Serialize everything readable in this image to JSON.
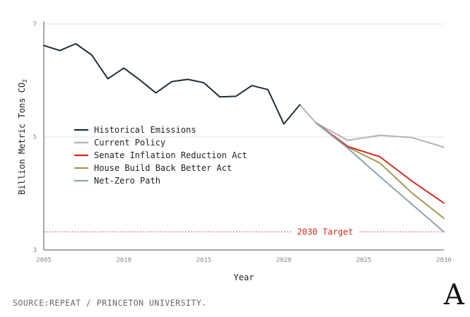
{
  "chart_data": {
    "type": "line",
    "xlabel": "Year",
    "ylabel": "Billion Metric Tons CO",
    "ylabel_sub": "2",
    "xlim": [
      2005,
      2030
    ],
    "ylim": [
      3,
      7
    ],
    "x_ticks": [
      "2005",
      "2010",
      "2015",
      "2020",
      "2025",
      "2030"
    ],
    "y_ticks": [
      "3",
      "5",
      "7"
    ],
    "grid": true,
    "legend_position": "center-left",
    "series": [
      {
        "name": "Historical Emissions",
        "color": "#1f2d38",
        "x": [
          2005,
          2006,
          2007,
          2008,
          2009,
          2010,
          2011,
          2012,
          2013,
          2014,
          2015,
          2016,
          2017,
          2018,
          2019,
          2020,
          2021
        ],
        "y": [
          6.62,
          6.53,
          6.65,
          6.45,
          6.03,
          6.22,
          6.01,
          5.78,
          5.98,
          6.02,
          5.96,
          5.71,
          5.72,
          5.91,
          5.84,
          5.23,
          5.57
        ]
      },
      {
        "name": "Current Policy",
        "color": "#b3b3b3",
        "x": [
          2021,
          2022,
          2024,
          2026,
          2028,
          2030
        ],
        "y": [
          5.57,
          5.25,
          4.94,
          5.03,
          4.99,
          4.82
        ]
      },
      {
        "name": "Senate Inflation Reduction Act",
        "color": "#d42a1f",
        "x": [
          2022,
          2024,
          2026,
          2028,
          2030
        ],
        "y": [
          5.25,
          4.83,
          4.65,
          4.22,
          3.83
        ]
      },
      {
        "name": "House Build Back Better Act",
        "color": "#a39a55",
        "x": [
          2022,
          2024,
          2026,
          2028,
          2030
        ],
        "y": [
          5.25,
          4.82,
          4.54,
          4.01,
          3.56
        ]
      },
      {
        "name": "Net-Zero Path",
        "color": "#8ea3b3",
        "x": [
          2022,
          2024,
          2026,
          2028,
          2030
        ],
        "y": [
          5.25,
          4.8,
          4.3,
          3.81,
          3.32
        ]
      }
    ],
    "annotations": [
      {
        "label": "2030 Target",
        "y": 3.32,
        "color": "#d42a1f",
        "style": "dotted"
      }
    ]
  },
  "source": "SOURCE:REPEAT / PRINCETON UNIVERSITY.",
  "logo": "A"
}
